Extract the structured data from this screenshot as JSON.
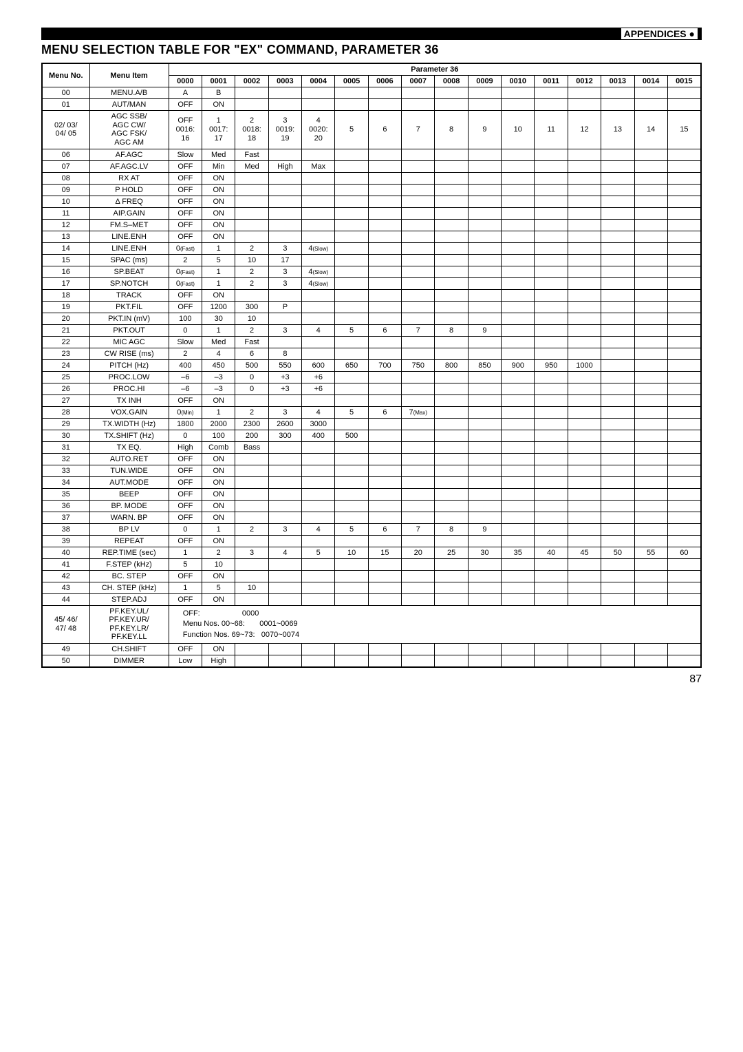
{
  "header": {
    "appendices": "APPENDICES",
    "title": "MENU SELECTION TABLE FOR \"EX\" COMMAND, PARAMETER 36"
  },
  "table": {
    "head": {
      "menuNo": "Menu No.",
      "menuItem": "Menu Item",
      "param": "Parameter 36",
      "cols": [
        "0000",
        "0001",
        "0002",
        "0003",
        "0004",
        "0005",
        "0006",
        "0007",
        "0008",
        "0009",
        "0010",
        "0011",
        "0012",
        "0013",
        "0014",
        "0015"
      ]
    },
    "rows": [
      {
        "no": "00",
        "item": "MENU.A/B",
        "v": [
          "A",
          "B",
          "",
          "",
          "",
          "",
          "",
          "",
          "",
          "",
          "",
          "",
          "",
          "",
          "",
          ""
        ]
      },
      {
        "no": "01",
        "item": "AUT/MAN",
        "v": [
          "OFF",
          "ON",
          "",
          "",
          "",
          "",
          "",
          "",
          "",
          "",
          "",
          "",
          "",
          "",
          "",
          ""
        ]
      },
      {
        "no": "02/ 03/\n04/ 05",
        "item": "AGC SSB/\nAGC CW/\nAGC FSK/\nAGC AM",
        "v": [
          "OFF\n0016:\n16",
          "1\n0017:\n17",
          "2\n0018:\n18",
          "3\n0019:\n19",
          "4\n0020:\n20",
          "5",
          "6",
          "7",
          "8",
          "9",
          "10",
          "11",
          "12",
          "13",
          "14",
          "15"
        ]
      },
      {
        "no": "06",
        "item": "AF.AGC",
        "v": [
          "Slow",
          "Med",
          "Fast",
          "",
          "",
          "",
          "",
          "",
          "",
          "",
          "",
          "",
          "",
          "",
          "",
          ""
        ]
      },
      {
        "no": "07",
        "item": "AF.AGC.LV",
        "v": [
          "OFF",
          "Min",
          "Med",
          "High",
          "Max",
          "",
          "",
          "",
          "",
          "",
          "",
          "",
          "",
          "",
          "",
          ""
        ]
      },
      {
        "no": "08",
        "item": "RX AT",
        "v": [
          "OFF",
          "ON",
          "",
          "",
          "",
          "",
          "",
          "",
          "",
          "",
          "",
          "",
          "",
          "",
          "",
          ""
        ]
      },
      {
        "no": "09",
        "item": "P HOLD",
        "v": [
          "OFF",
          "ON",
          "",
          "",
          "",
          "",
          "",
          "",
          "",
          "",
          "",
          "",
          "",
          "",
          "",
          ""
        ]
      },
      {
        "no": "10",
        "item": "Δ FREQ",
        "v": [
          "OFF",
          "ON",
          "",
          "",
          "",
          "",
          "",
          "",
          "",
          "",
          "",
          "",
          "",
          "",
          "",
          ""
        ]
      },
      {
        "no": "11",
        "item": "AIP.GAIN",
        "v": [
          "OFF",
          "ON",
          "",
          "",
          "",
          "",
          "",
          "",
          "",
          "",
          "",
          "",
          "",
          "",
          "",
          ""
        ]
      },
      {
        "no": "12",
        "item": "FM.S–MET",
        "v": [
          "OFF",
          "ON",
          "",
          "",
          "",
          "",
          "",
          "",
          "",
          "",
          "",
          "",
          "",
          "",
          "",
          ""
        ]
      },
      {
        "no": "13",
        "item": "LINE.ENH",
        "v": [
          "OFF",
          "ON",
          "",
          "",
          "",
          "",
          "",
          "",
          "",
          "",
          "",
          "",
          "",
          "",
          "",
          ""
        ]
      },
      {
        "no": "14",
        "item": "LINE.ENH",
        "v": [
          "0(Fast)",
          "1",
          "2",
          "3",
          "4(Slow)",
          "",
          "",
          "",
          "",
          "",
          "",
          "",
          "",
          "",
          "",
          ""
        ]
      },
      {
        "no": "15",
        "item": "SPAC (ms)",
        "v": [
          "2",
          "5",
          "10",
          "17",
          "",
          "",
          "",
          "",
          "",
          "",
          "",
          "",
          "",
          "",
          "",
          ""
        ]
      },
      {
        "no": "16",
        "item": "SP.BEAT",
        "v": [
          "0(Fast)",
          "1",
          "2",
          "3",
          "4(Slow)",
          "",
          "",
          "",
          "",
          "",
          "",
          "",
          "",
          "",
          "",
          ""
        ]
      },
      {
        "no": "17",
        "item": "SP.NOTCH",
        "v": [
          "0(Fast)",
          "1",
          "2",
          "3",
          "4(Slow)",
          "",
          "",
          "",
          "",
          "",
          "",
          "",
          "",
          "",
          "",
          ""
        ]
      },
      {
        "no": "18",
        "item": "TRACK",
        "v": [
          "OFF",
          "ON",
          "",
          "",
          "",
          "",
          "",
          "",
          "",
          "",
          "",
          "",
          "",
          "",
          "",
          ""
        ]
      },
      {
        "no": "19",
        "item": "PKT.FIL",
        "v": [
          "OFF",
          "1200",
          "300",
          "P",
          "",
          "",
          "",
          "",
          "",
          "",
          "",
          "",
          "",
          "",
          "",
          ""
        ]
      },
      {
        "no": "20",
        "item": "PKT.IN (mV)",
        "v": [
          "100",
          "30",
          "10",
          "",
          "",
          "",
          "",
          "",
          "",
          "",
          "",
          "",
          "",
          "",
          "",
          ""
        ]
      },
      {
        "no": "21",
        "item": "PKT.OUT",
        "v": [
          "0",
          "1",
          "2",
          "3",
          "4",
          "5",
          "6",
          "7",
          "8",
          "9",
          "",
          "",
          "",
          "",
          "",
          ""
        ]
      },
      {
        "no": "22",
        "item": "MIC AGC",
        "v": [
          "Slow",
          "Med",
          "Fast",
          "",
          "",
          "",
          "",
          "",
          "",
          "",
          "",
          "",
          "",
          "",
          "",
          ""
        ]
      },
      {
        "no": "23",
        "item": "CW RISE (ms)",
        "v": [
          "2",
          "4",
          "6",
          "8",
          "",
          "",
          "",
          "",
          "",
          "",
          "",
          "",
          "",
          "",
          "",
          ""
        ]
      },
      {
        "no": "24",
        "item": "PITCH (Hz)",
        "v": [
          "400",
          "450",
          "500",
          "550",
          "600",
          "650",
          "700",
          "750",
          "800",
          "850",
          "900",
          "950",
          "1000",
          "",
          "",
          ""
        ]
      },
      {
        "no": "25",
        "item": "PROC.LOW",
        "v": [
          "–6",
          "–3",
          "0",
          "+3",
          "+6",
          "",
          "",
          "",
          "",
          "",
          "",
          "",
          "",
          "",
          "",
          ""
        ]
      },
      {
        "no": "26",
        "item": "PROC.HI",
        "v": [
          "–6",
          "–3",
          "0",
          "+3",
          "+6",
          "",
          "",
          "",
          "",
          "",
          "",
          "",
          "",
          "",
          "",
          ""
        ]
      },
      {
        "no": "27",
        "item": "TX INH",
        "v": [
          "OFF",
          "ON",
          "",
          "",
          "",
          "",
          "",
          "",
          "",
          "",
          "",
          "",
          "",
          "",
          "",
          ""
        ]
      },
      {
        "no": "28",
        "item": "VOX.GAIN",
        "v": [
          "0(Min)",
          "1",
          "2",
          "3",
          "4",
          "5",
          "6",
          "7(Max)",
          "",
          "",
          "",
          "",
          "",
          "",
          "",
          ""
        ]
      },
      {
        "no": "29",
        "item": "TX.WIDTH (Hz)",
        "v": [
          "1800",
          "2000",
          "2300",
          "2600",
          "3000",
          "",
          "",
          "",
          "",
          "",
          "",
          "",
          "",
          "",
          "",
          ""
        ]
      },
      {
        "no": "30",
        "item": "TX.SHIFT (Hz)",
        "v": [
          "0",
          "100",
          "200",
          "300",
          "400",
          "500",
          "",
          "",
          "",
          "",
          "",
          "",
          "",
          "",
          "",
          ""
        ]
      },
      {
        "no": "31",
        "item": "TX EQ.",
        "v": [
          "High",
          "Comb",
          "Bass",
          "",
          "",
          "",
          "",
          "",
          "",
          "",
          "",
          "",
          "",
          "",
          "",
          ""
        ]
      },
      {
        "no": "32",
        "item": "AUTO.RET",
        "v": [
          "OFF",
          "ON",
          "",
          "",
          "",
          "",
          "",
          "",
          "",
          "",
          "",
          "",
          "",
          "",
          "",
          ""
        ]
      },
      {
        "no": "33",
        "item": "TUN.WIDE",
        "v": [
          "OFF",
          "ON",
          "",
          "",
          "",
          "",
          "",
          "",
          "",
          "",
          "",
          "",
          "",
          "",
          "",
          ""
        ]
      },
      {
        "no": "34",
        "item": "AUT.MODE",
        "v": [
          "OFF",
          "ON",
          "",
          "",
          "",
          "",
          "",
          "",
          "",
          "",
          "",
          "",
          "",
          "",
          "",
          ""
        ]
      },
      {
        "no": "35",
        "item": "BEEP",
        "v": [
          "OFF",
          "ON",
          "",
          "",
          "",
          "",
          "",
          "",
          "",
          "",
          "",
          "",
          "",
          "",
          "",
          ""
        ]
      },
      {
        "no": "36",
        "item": "BP. MODE",
        "v": [
          "OFF",
          "ON",
          "",
          "",
          "",
          "",
          "",
          "",
          "",
          "",
          "",
          "",
          "",
          "",
          "",
          ""
        ]
      },
      {
        "no": "37",
        "item": "WARN. BP",
        "v": [
          "OFF",
          "ON",
          "",
          "",
          "",
          "",
          "",
          "",
          "",
          "",
          "",
          "",
          "",
          "",
          "",
          ""
        ]
      },
      {
        "no": "38",
        "item": "BP LV",
        "v": [
          "0",
          "1",
          "2",
          "3",
          "4",
          "5",
          "6",
          "7",
          "8",
          "9",
          "",
          "",
          "",
          "",
          "",
          ""
        ]
      },
      {
        "no": "39",
        "item": "REPEAT",
        "v": [
          "OFF",
          "ON",
          "",
          "",
          "",
          "",
          "",
          "",
          "",
          "",
          "",
          "",
          "",
          "",
          "",
          ""
        ]
      },
      {
        "no": "40",
        "item": "REP.TIME (sec)",
        "v": [
          "1",
          "2",
          "3",
          "4",
          "5",
          "10",
          "15",
          "20",
          "25",
          "30",
          "35",
          "40",
          "45",
          "50",
          "55",
          "60"
        ]
      },
      {
        "no": "41",
        "item": "F.STEP (kHz)",
        "v": [
          "5",
          "10",
          "",
          "",
          "",
          "",
          "",
          "",
          "",
          "",
          "",
          "",
          "",
          "",
          "",
          ""
        ]
      },
      {
        "no": "42",
        "item": "BC. STEP",
        "v": [
          "OFF",
          "ON",
          "",
          "",
          "",
          "",
          "",
          "",
          "",
          "",
          "",
          "",
          "",
          "",
          "",
          ""
        ]
      },
      {
        "no": "43",
        "item": "CH. STEP (kHz)",
        "v": [
          "1",
          "5",
          "10",
          "",
          "",
          "",
          "",
          "",
          "",
          "",
          "",
          "",
          "",
          "",
          "",
          ""
        ]
      },
      {
        "no": "44",
        "item": "STEP.ADJ",
        "v": [
          "OFF",
          "ON",
          "",
          "",
          "",
          "",
          "",
          "",
          "",
          "",
          "",
          "",
          "",
          "",
          "",
          ""
        ]
      },
      {
        "no": "45/ 46/\n47/ 48",
        "item": "PF.KEY.UL/\nPF.KEY.UR/\nPF.KEY.LR/\nPF.KEY.LL",
        "special": "OFF:                    0000\nMenu Nos. 00~68:       0001~0069\nFunction Nos. 69~73:   0070~0074"
      },
      {
        "no": "49",
        "item": "CH.SHIFT",
        "v": [
          "OFF",
          "ON",
          "",
          "",
          "",
          "",
          "",
          "",
          "",
          "",
          "",
          "",
          "",
          "",
          "",
          ""
        ]
      },
      {
        "no": "50",
        "item": "DIMMER",
        "v": [
          "Low",
          "High",
          "",
          "",
          "",
          "",
          "",
          "",
          "",
          "",
          "",
          "",
          "",
          "",
          "",
          ""
        ]
      }
    ]
  },
  "footer": {
    "page": "87"
  }
}
